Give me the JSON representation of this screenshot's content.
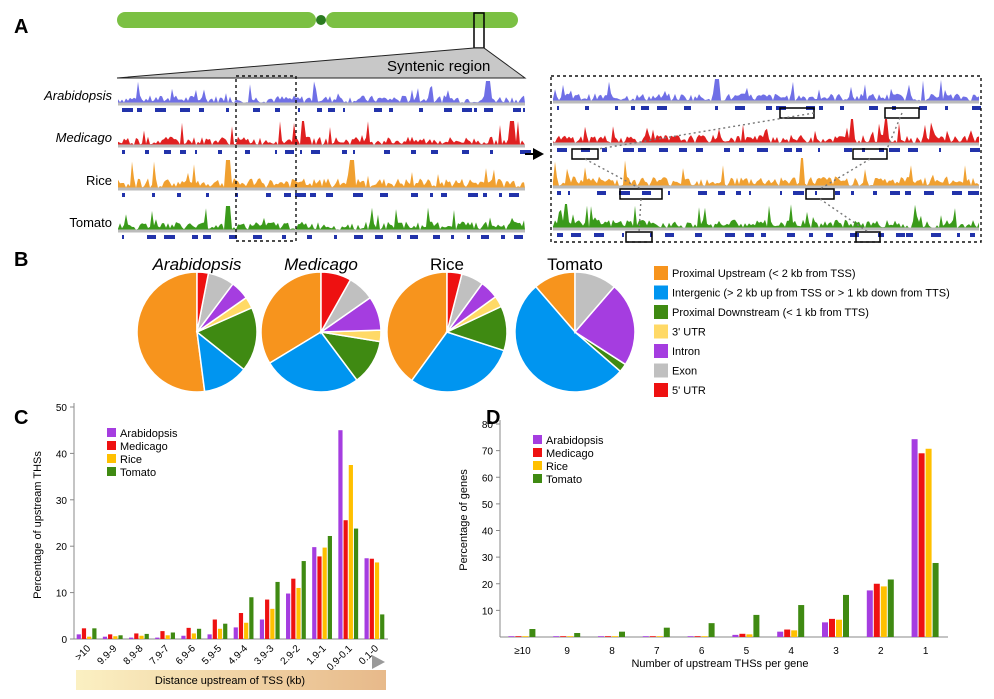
{
  "panels": {
    "a": "A",
    "b": "B",
    "c": "C",
    "d": "D"
  },
  "panel_a": {
    "region_label": "Syntenic region",
    "tracks": [
      {
        "name": "Arabidopsis",
        "italic": true,
        "color": "#6f6fe6"
      },
      {
        "name": "Medicago",
        "italic": true,
        "color": "#e02020"
      },
      {
        "name": "Rice",
        "italic": false,
        "color": "#f0a030"
      },
      {
        "name": "Tomato",
        "italic": false,
        "color": "#3a9a1a"
      }
    ],
    "chromosome_color": "#7bc043"
  },
  "panel_b": {
    "categories": [
      {
        "label": "Proximal Upstream (< 2 kb from TSS)",
        "color": "#f7941d"
      },
      {
        "label": "Intergenic (> 2 kb up from TSS or > 1 kb down from TTS)",
        "color": "#0095f0"
      },
      {
        "label": "Proximal Downstream (< 1 kb from TTS)",
        "color": "#3f8a12"
      },
      {
        "label": "3' UTR",
        "color": "#ffd966"
      },
      {
        "label": "Intron",
        "color": "#a53de0"
      },
      {
        "label": "Exon",
        "color": "#c0c0c0"
      },
      {
        "label": "5' UTR",
        "color": "#ee1111"
      }
    ],
    "pies": [
      {
        "title": "Arabidopsis",
        "italic": true,
        "values": [
          51,
          12,
          17,
          3,
          5,
          7,
          3
        ]
      },
      {
        "title": "Medicago",
        "italic": true,
        "values": [
          33,
          26,
          12,
          3,
          9,
          7,
          8
        ]
      },
      {
        "title": "Rice",
        "italic": false,
        "values": [
          40,
          30,
          12,
          3,
          5,
          6,
          4
        ]
      },
      {
        "title": "Tomato",
        "italic": false,
        "values": [
          10,
          46,
          2,
          0,
          20,
          10,
          0
        ]
      }
    ]
  },
  "chart_data": [
    {
      "type": "bar",
      "panel": "C",
      "xlabel": "Distance upstream of TSS (kb)",
      "ylabel": "Percentage of upstream THSs",
      "ylim": [
        0,
        50
      ],
      "yticks": [
        0,
        10,
        20,
        30,
        40,
        50
      ],
      "legend_position": "top-left",
      "categories": [
        ">10",
        "9.9-9",
        "8.9-8",
        "7.9-7",
        "6.9-6",
        "5.9-5",
        "4.9-4",
        "3.9-3",
        "2.9-2",
        "1.9-1",
        "0.9-0.1",
        "0.1-0"
      ],
      "series": [
        {
          "name": "Arabidopsis",
          "color": "#a53de0",
          "values": [
            1.0,
            0.5,
            0.3,
            0.3,
            0.7,
            1.0,
            2.5,
            4.2,
            9.8,
            19.8,
            45.0,
            17.4
          ]
        },
        {
          "name": "Medicago",
          "color": "#ee1111",
          "values": [
            2.3,
            1.0,
            1.2,
            1.7,
            2.4,
            4.2,
            5.6,
            8.5,
            13.0,
            17.8,
            25.6,
            17.3
          ]
        },
        {
          "name": "Rice",
          "color": "#ffc000",
          "values": [
            0.5,
            0.6,
            0.7,
            0.8,
            1.2,
            2.2,
            3.5,
            6.5,
            11.0,
            19.7,
            37.5,
            16.5
          ]
        },
        {
          "name": "Tomato",
          "color": "#3f8a12",
          "values": [
            2.3,
            0.8,
            1.1,
            1.4,
            2.2,
            3.3,
            9.0,
            12.3,
            16.8,
            22.2,
            23.8,
            5.3
          ]
        }
      ]
    },
    {
      "type": "bar",
      "panel": "D",
      "xlabel": "Number of upstream THSs per gene",
      "ylabel": "Percentage of genes",
      "ylim": [
        0,
        80
      ],
      "yticks": [
        10,
        20,
        30,
        40,
        50,
        60,
        70,
        80
      ],
      "legend_position": "top-left",
      "categories": [
        "≥10",
        "9",
        "8",
        "7",
        "6",
        "5",
        "4",
        "3",
        "2",
        "1"
      ],
      "series": [
        {
          "name": "Arabidopsis",
          "color": "#a53de0",
          "values": [
            0.3,
            0.3,
            0.3,
            0.3,
            0.3,
            0.8,
            2.0,
            5.5,
            17.5,
            74.3
          ]
        },
        {
          "name": "Medicago",
          "color": "#ee1111",
          "values": [
            0.3,
            0.3,
            0.3,
            0.3,
            0.3,
            1.2,
            2.8,
            6.8,
            20.0,
            69.0
          ]
        },
        {
          "name": "Rice",
          "color": "#ffc000",
          "values": [
            0.3,
            0.3,
            0.3,
            0.3,
            0.3,
            1.0,
            2.5,
            6.5,
            19.0,
            70.7
          ]
        },
        {
          "name": "Tomato",
          "color": "#3f8a12",
          "values": [
            3.0,
            1.5,
            2.0,
            3.5,
            5.2,
            8.3,
            12.0,
            15.8,
            21.6,
            27.8
          ]
        }
      ]
    }
  ]
}
